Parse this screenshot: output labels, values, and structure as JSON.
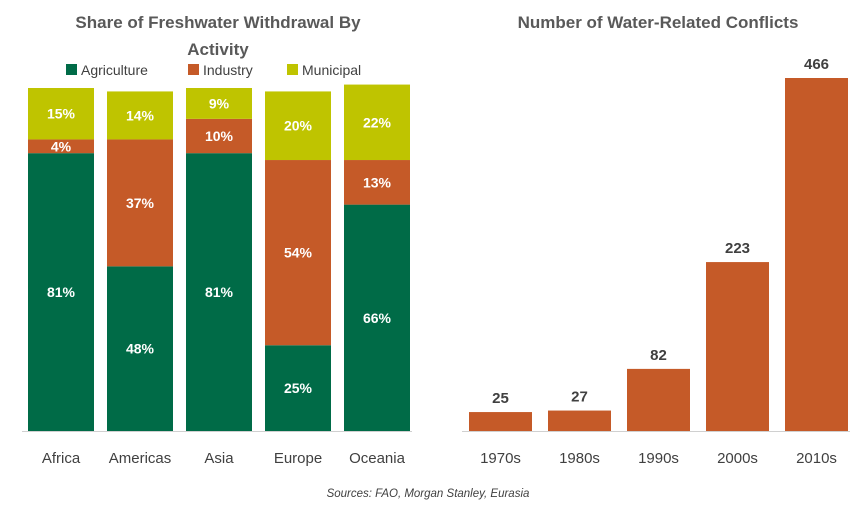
{
  "colors": {
    "agriculture": "#006b47",
    "industry": "#c55a28",
    "municipal": "#bfc400",
    "axis": "#d0d0d0"
  },
  "source": "Sources: FAO, Morgan Stanley, Eurasia",
  "chart_data": [
    {
      "type": "bar",
      "stacked": true,
      "title_lines": [
        "Share of Freshwater Withdrawal By",
        "Activity"
      ],
      "categories": [
        "Africa",
        "Americas",
        "Asia",
        "Europe",
        "Oceania"
      ],
      "series": [
        {
          "name": "Agriculture",
          "values": [
            81,
            48,
            81,
            25,
            66
          ]
        },
        {
          "name": "Industry",
          "values": [
            4,
            37,
            10,
            54,
            13
          ]
        },
        {
          "name": "Municipal",
          "values": [
            15,
            14,
            9,
            20,
            22
          ]
        }
      ],
      "value_suffix": "%",
      "ylim": [
        0,
        100
      ],
      "legend": "top",
      "grid": false
    },
    {
      "type": "bar",
      "title": "Number of Water-Related Conflicts",
      "categories": [
        "1970s",
        "1980s",
        "1990s",
        "2000s",
        "2010s"
      ],
      "values": [
        25,
        27,
        82,
        223,
        466
      ],
      "ylim": [
        0,
        466
      ],
      "grid": false
    }
  ]
}
